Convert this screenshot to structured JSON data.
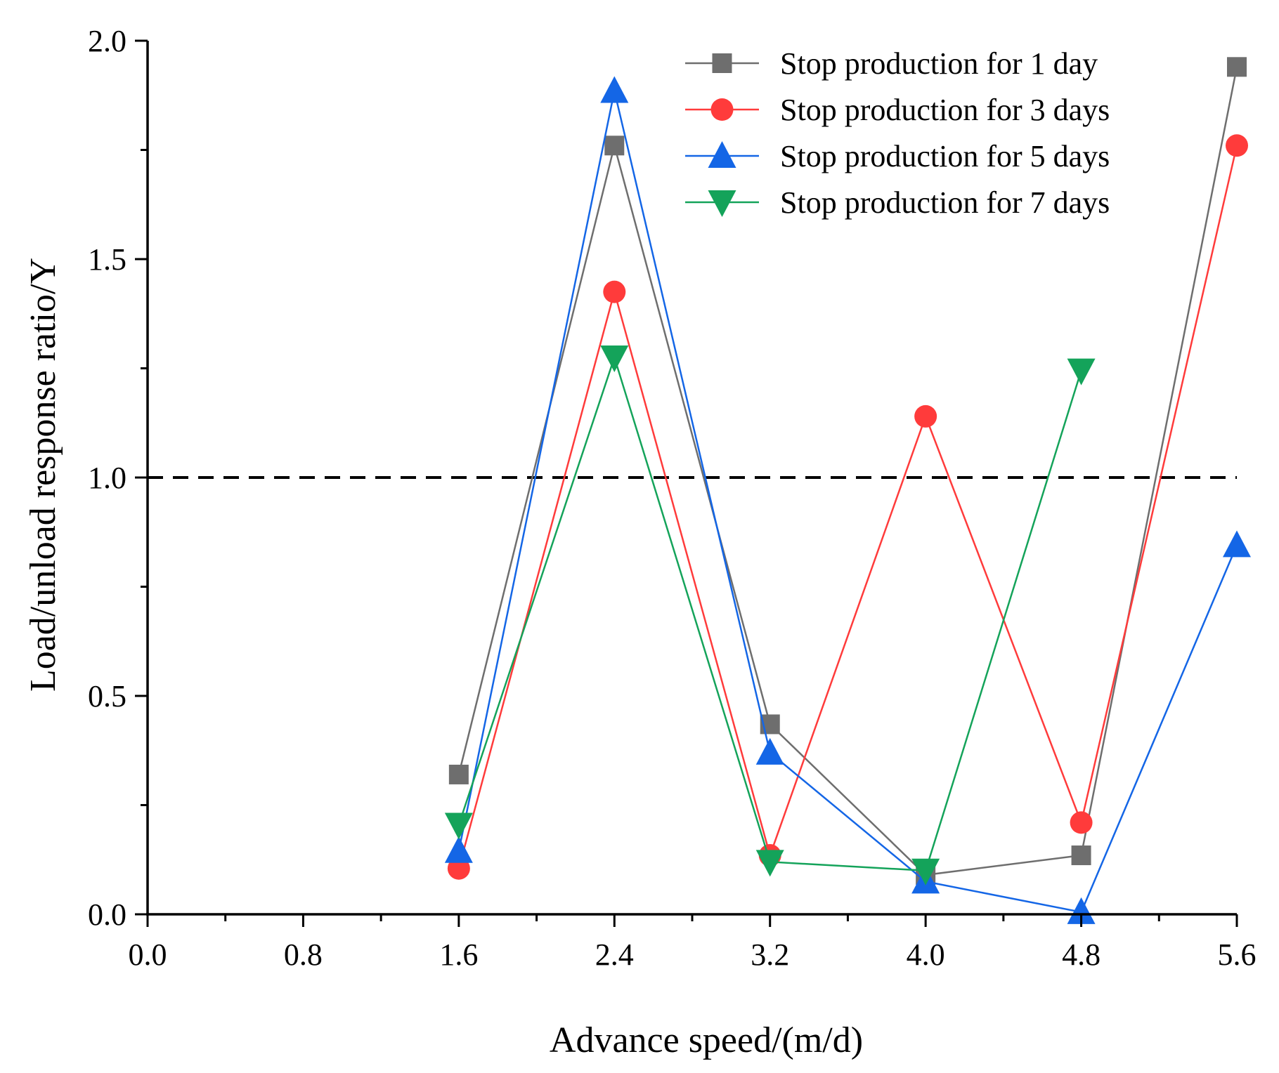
{
  "chart_data": {
    "type": "line",
    "title": "",
    "xlabel": "Advance speed/(m/d)",
    "ylabel": "Load/unload response ratio/Y",
    "xlim": [
      0,
      5.6
    ],
    "ylim": [
      0,
      2.0
    ],
    "x_ticks": [
      0.0,
      0.8,
      1.6,
      2.4,
      3.2,
      4.0,
      4.8,
      5.6
    ],
    "x_tick_labels": [
      "0.0",
      "0.8",
      "1.6",
      "2.4",
      "3.2",
      "4.0",
      "4.8",
      "5.6"
    ],
    "y_ticks": [
      0.0,
      0.5,
      1.0,
      1.5,
      2.0
    ],
    "y_tick_labels": [
      "0.0",
      "0.5",
      "1.0",
      "1.5",
      "2.0"
    ],
    "x_minor_step": 0.4,
    "y_minor_step": 0.25,
    "grid": false,
    "legend_position": "top-right",
    "reference_line": {
      "y": 1.0,
      "style": "dashed",
      "color": "#000000"
    },
    "x": [
      1.6,
      2.4,
      3.2,
      4.0,
      4.8,
      5.6
    ],
    "series": [
      {
        "name": "Stop production for 1 day",
        "color": "#6e6e6e",
        "marker": "square",
        "values": [
          0.32,
          1.76,
          0.435,
          0.09,
          0.135,
          1.94
        ]
      },
      {
        "name": "Stop production for 3 days",
        "color": "#ff3b3b",
        "marker": "circle",
        "values": [
          0.105,
          1.425,
          0.135,
          1.14,
          0.21,
          1.76
        ]
      },
      {
        "name": "Stop production for 5 days",
        "color": "#1466e6",
        "marker": "triangle-up",
        "values": [
          0.145,
          1.885,
          0.37,
          0.075,
          0.005,
          0.845
        ]
      },
      {
        "name": "Stop production for 7 days",
        "color": "#14a35a",
        "marker": "triangle-down",
        "values": [
          0.205,
          1.275,
          0.12,
          0.1,
          1.245,
          null
        ]
      }
    ]
  }
}
